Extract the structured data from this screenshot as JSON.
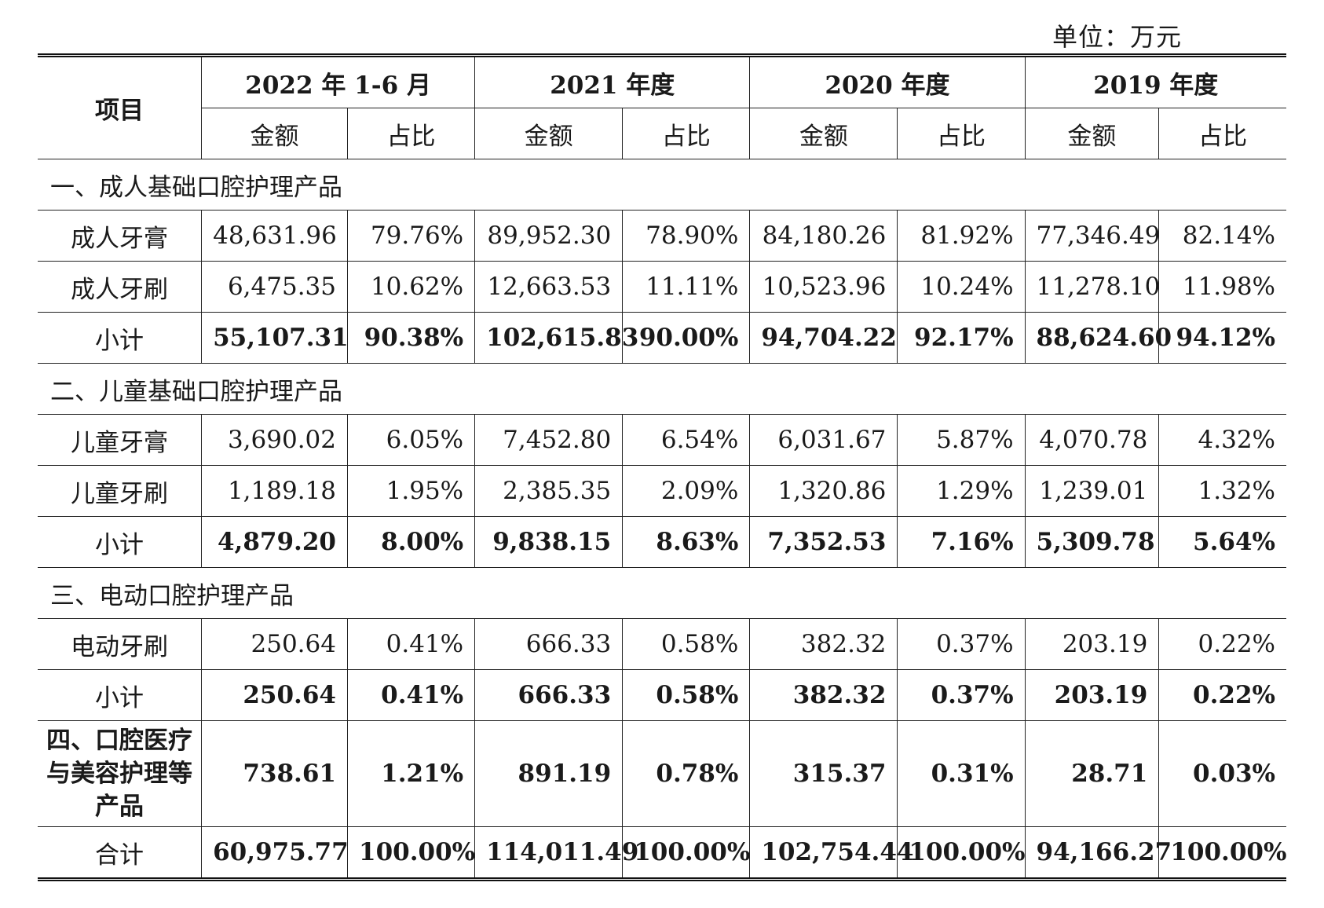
{
  "unit_label": "单位：万元",
  "header": {
    "item_col": "项目",
    "periods": [
      "2022 年 1-6 月",
      "2021 年度",
      "2020 年度",
      "2019 年度"
    ],
    "amount_label": "金额",
    "ratio_label": "占比"
  },
  "sections": {
    "s1": {
      "title": "一、成人基础口腔护理产品",
      "rows": [
        {
          "label": "成人牙膏",
          "values": [
            "48,631.96",
            "79.76%",
            "89,952.30",
            "78.90%",
            "84,180.26",
            "81.92%",
            "77,346.49",
            "82.14%"
          ]
        },
        {
          "label": "成人牙刷",
          "values": [
            "6,475.35",
            "10.62%",
            "12,663.53",
            "11.11%",
            "10,523.96",
            "10.24%",
            "11,278.10",
            "11.98%"
          ]
        }
      ],
      "subtotal": {
        "label": "小计",
        "values": [
          "55,107.31",
          "90.38%",
          "102,615.83",
          "90.00%",
          "94,704.22",
          "92.17%",
          "88,624.60",
          "94.12%"
        ]
      }
    },
    "s2": {
      "title": "二、儿童基础口腔护理产品",
      "rows": [
        {
          "label": "儿童牙膏",
          "values": [
            "3,690.02",
            "6.05%",
            "7,452.80",
            "6.54%",
            "6,031.67",
            "5.87%",
            "4,070.78",
            "4.32%"
          ]
        },
        {
          "label": "儿童牙刷",
          "values": [
            "1,189.18",
            "1.95%",
            "2,385.35",
            "2.09%",
            "1,320.86",
            "1.29%",
            "1,239.01",
            "1.32%"
          ]
        }
      ],
      "subtotal": {
        "label": "小计",
        "values": [
          "4,879.20",
          "8.00%",
          "9,838.15",
          "8.63%",
          "7,352.53",
          "7.16%",
          "5,309.78",
          "5.64%"
        ]
      }
    },
    "s3": {
      "title": "三、电动口腔护理产品",
      "rows": [
        {
          "label": "电动牙刷",
          "values": [
            "250.64",
            "0.41%",
            "666.33",
            "0.58%",
            "382.32",
            "0.37%",
            "203.19",
            "0.22%"
          ]
        }
      ],
      "subtotal": {
        "label": "小计",
        "values": [
          "250.64",
          "0.41%",
          "666.33",
          "0.58%",
          "382.32",
          "0.37%",
          "203.19",
          "0.22%"
        ]
      }
    },
    "s4": {
      "label": "四、口腔医疗与美容护理等产品",
      "values": [
        "738.61",
        "1.21%",
        "891.19",
        "0.78%",
        "315.37",
        "0.31%",
        "28.71",
        "0.03%"
      ]
    }
  },
  "total": {
    "label": "合计",
    "values": [
      "60,975.77",
      "100.00%",
      "114,011.49",
      "100.00%",
      "102,754.44",
      "100.00%",
      "94,166.27",
      "100.00%"
    ]
  }
}
